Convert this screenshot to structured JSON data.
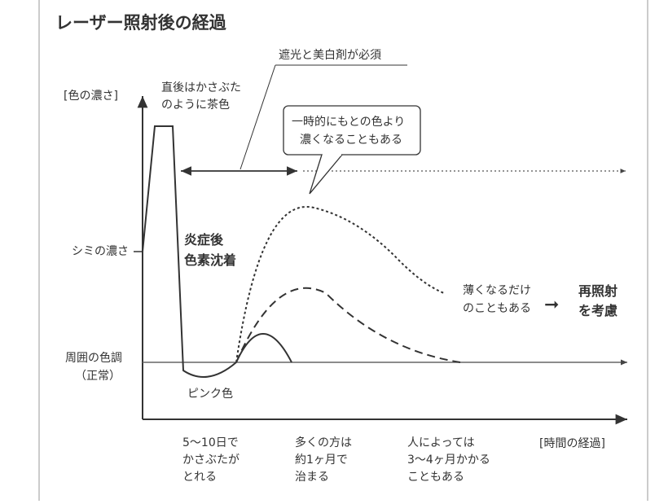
{
  "title": "レーザー照射後の経過",
  "y_axis_label": "[色の濃さ]",
  "x_axis_label": "[時間の経過]",
  "y_levels": {
    "spot": "シミの濃さ",
    "normal_line1": "周囲の色調",
    "normal_line2": "（正常）"
  },
  "annotations": {
    "scab_line1": "直後はかさぶた",
    "scab_line2": "のように茶色",
    "sun_protection": "遮光と美白剤が必須",
    "temp_darker_line1": "一時的にもとの色より",
    "temp_darker_line2": "濃くなることもある",
    "pih_line1": "炎症後",
    "pih_line2": "色素沈着",
    "pink": "ピンク色",
    "fade_line1": "薄くなるだけ",
    "fade_line2": "のこともある",
    "reirradiate_line1": "再照射",
    "reirradiate_line2": "を考慮",
    "arrow_glyph": "➞"
  },
  "timeline": [
    {
      "line1": "5〜10日で",
      "line2": "かさぶたが",
      "line3": "とれる"
    },
    {
      "line1": "多くの方は",
      "line2": "約1ヶ月で",
      "line3": "治まる"
    },
    {
      "line1": "人によっては",
      "line2": "3〜4ヶ月かかる",
      "line3": "こともある"
    }
  ]
}
